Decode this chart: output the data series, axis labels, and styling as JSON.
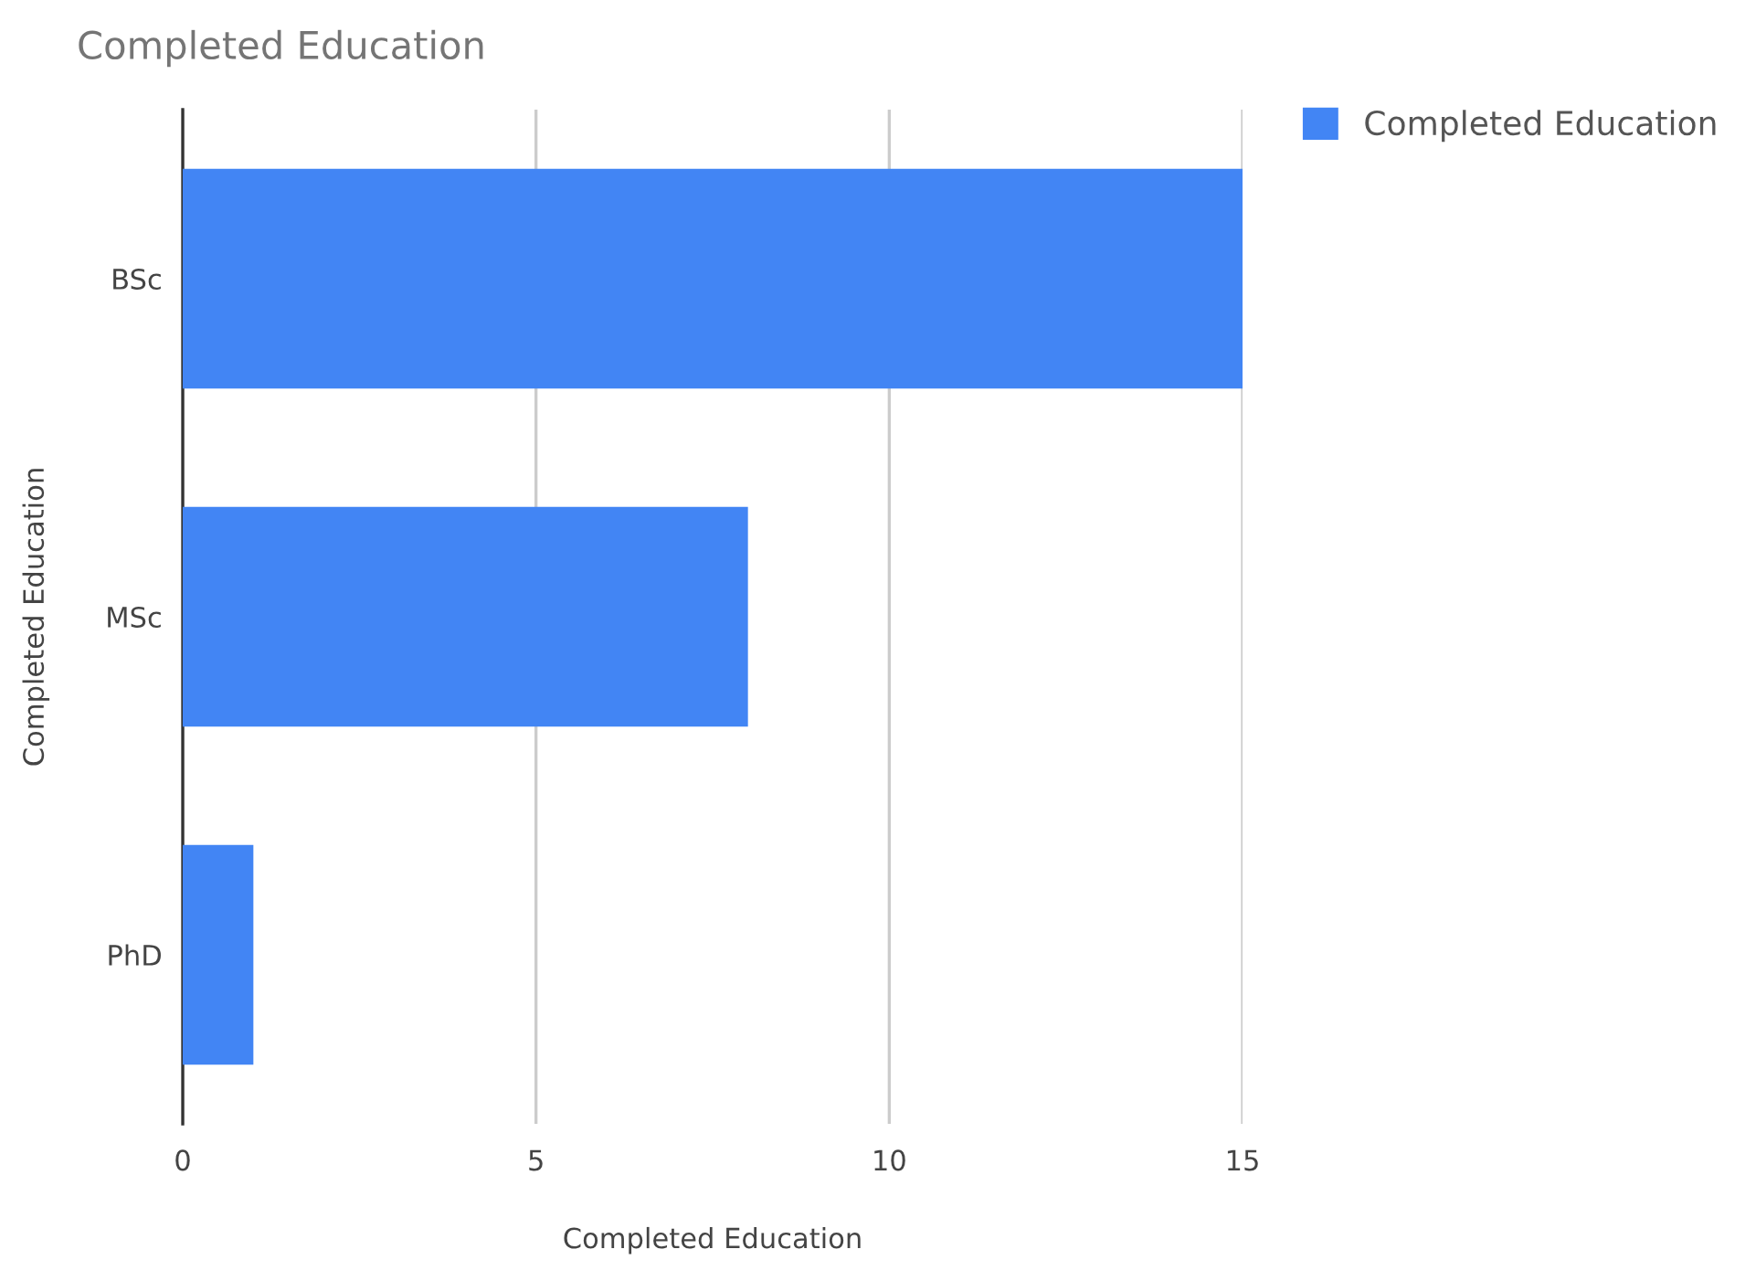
{
  "chart_data": {
    "type": "bar",
    "orientation": "horizontal",
    "title": "Completed Education",
    "xlabel": "Completed Education",
    "ylabel": "Completed Education",
    "categories": [
      "BSc",
      "MSc",
      "PhD"
    ],
    "series": [
      {
        "name": "Completed Education",
        "color": "#4285f4",
        "values": [
          15,
          8,
          1
        ]
      }
    ],
    "xlim": [
      0,
      15
    ],
    "xticks": [
      0,
      5,
      10,
      15
    ],
    "grid": "x",
    "legend": "top right"
  }
}
